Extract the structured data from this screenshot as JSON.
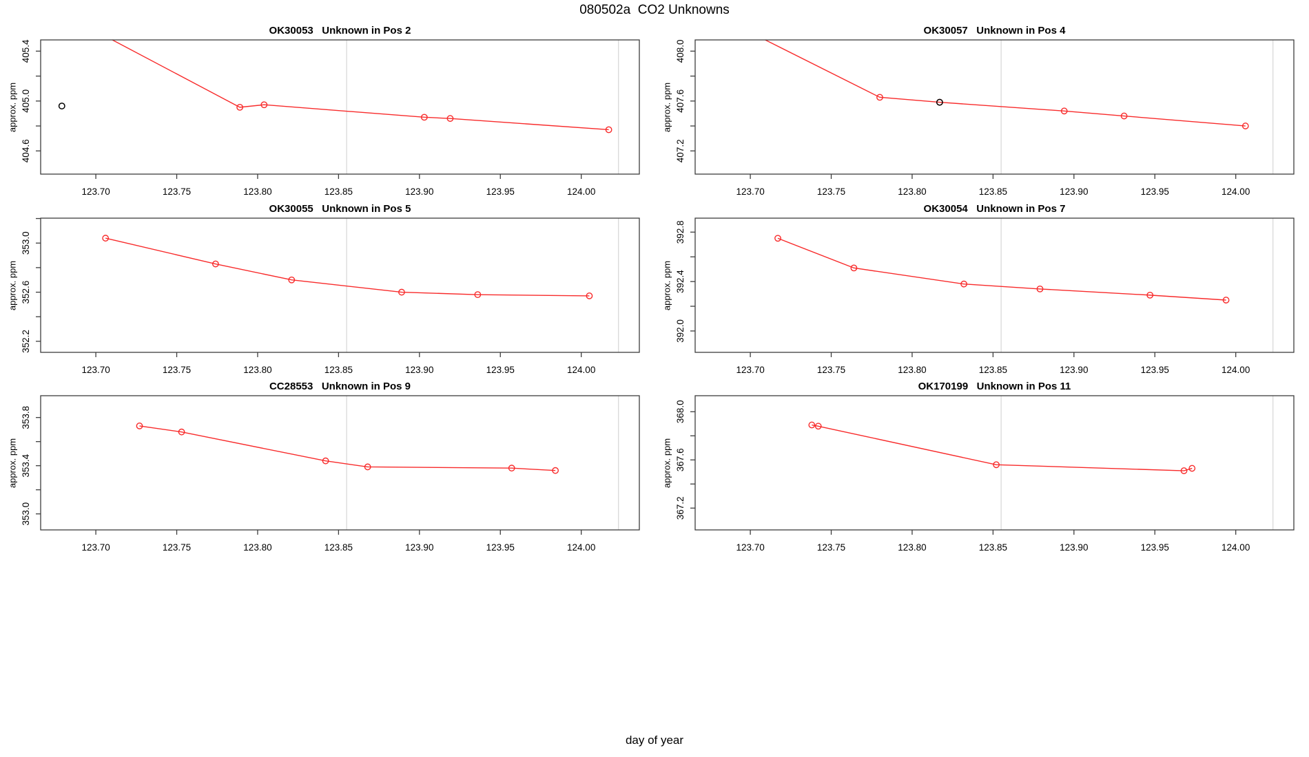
{
  "figure": {
    "main_title": "080502a  CO2 Unknowns",
    "x_axis_label": "day of year",
    "y_axis_label": "approx. ppm",
    "colors": {
      "series_red": "#f82a2a",
      "point_black": "#000000",
      "reference_gray": "#d6d6d6",
      "frame_gray": "#3c3c3c",
      "text": "#000000"
    }
  },
  "chart_data": {
    "type": "line",
    "xlabel": "day of year",
    "ylabel": "approx. ppm",
    "xlim": [
      123.6659,
      124.0359
    ],
    "x_ticks": {
      "values": [
        123.7,
        123.75,
        123.8,
        123.85,
        123.9,
        123.95,
        124.0
      ],
      "labels": [
        "123.70",
        "123.75",
        "123.80",
        "123.85",
        "123.90",
        "123.95",
        "124.00"
      ]
    },
    "reference_lines_x": [
      123.855,
      124.023
    ],
    "panels": [
      {
        "title": "OK30053   Unknown in Pos 2",
        "ylim": [
          404.414,
          405.49
        ],
        "yticks_labeled": [
          404.6,
          405.0,
          405.4
        ],
        "yticks_unlabeled": [
          404.8,
          405.2
        ],
        "line": {
          "x": [
            123.7,
            123.789,
            123.804,
            123.903,
            123.919,
            124.017
          ],
          "y": [
            405.56,
            404.95,
            404.97,
            404.87,
            404.86,
            404.77
          ]
        },
        "black_point": {
          "x": 123.679,
          "y": 404.96,
          "on_line": false
        }
      },
      {
        "title": "OK30057   Unknown in Pos 4",
        "ylim": [
          407.014,
          408.09
        ],
        "yticks_labeled": [
          407.2,
          407.6,
          408.0
        ],
        "yticks_unlabeled": [
          407.4,
          407.8
        ],
        "line": {
          "x": [
            123.7,
            123.78,
            123.817,
            123.894,
            123.931,
            124.006
          ],
          "y": [
            408.15,
            407.63,
            407.59,
            407.52,
            407.48,
            407.4
          ]
        },
        "black_point": {
          "x": 123.817,
          "y": 407.59,
          "on_line": true
        }
      },
      {
        "title": "OK30055   Unknown in Pos 5",
        "ylim": [
          352.11,
          353.203
        ],
        "yticks_labeled": [
          352.2,
          352.6,
          353.0
        ],
        "yticks_unlabeled": [
          352.4,
          352.8,
          353.2
        ],
        "line": {
          "x": [
            123.706,
            123.774,
            123.821,
            123.889,
            123.936,
            124.005
          ],
          "y": [
            353.04,
            352.83,
            352.7,
            352.6,
            352.58,
            352.57
          ]
        },
        "black_point": null
      },
      {
        "title": "OK30054   Unknown in Pos 7",
        "ylim": [
          391.827,
          392.913
        ],
        "yticks_labeled": [
          392.0,
          392.4,
          392.8
        ],
        "yticks_unlabeled": [
          392.2,
          392.6
        ],
        "line": {
          "x": [
            123.717,
            123.764,
            123.832,
            123.879,
            123.947,
            123.994
          ],
          "y": [
            392.75,
            392.51,
            392.38,
            392.34,
            392.29,
            392.25
          ]
        },
        "black_point": null
      },
      {
        "title": "CC28553   Unknown in Pos 9",
        "ylim": [
          352.867,
          353.981
        ],
        "yticks_labeled": [
          353.0,
          353.4,
          353.8
        ],
        "yticks_unlabeled": [
          353.2,
          353.6
        ],
        "line": {
          "x": [
            123.727,
            123.753,
            123.842,
            123.868,
            123.957,
            123.984
          ],
          "y": [
            353.73,
            353.68,
            353.44,
            353.39,
            353.38,
            353.36
          ]
        },
        "black_point": null
      },
      {
        "title": "OK170199   Unknown in Pos 11",
        "ylim": [
          367.019,
          368.133
        ],
        "yticks_labeled": [
          367.2,
          367.6,
          368.0
        ],
        "yticks_unlabeled": [
          367.4,
          367.8
        ],
        "line": {
          "x": [
            123.738,
            123.742,
            123.852,
            123.968,
            123.973
          ],
          "y": [
            367.89,
            367.88,
            367.56,
            367.51,
            367.53
          ]
        },
        "black_point": null
      }
    ]
  }
}
